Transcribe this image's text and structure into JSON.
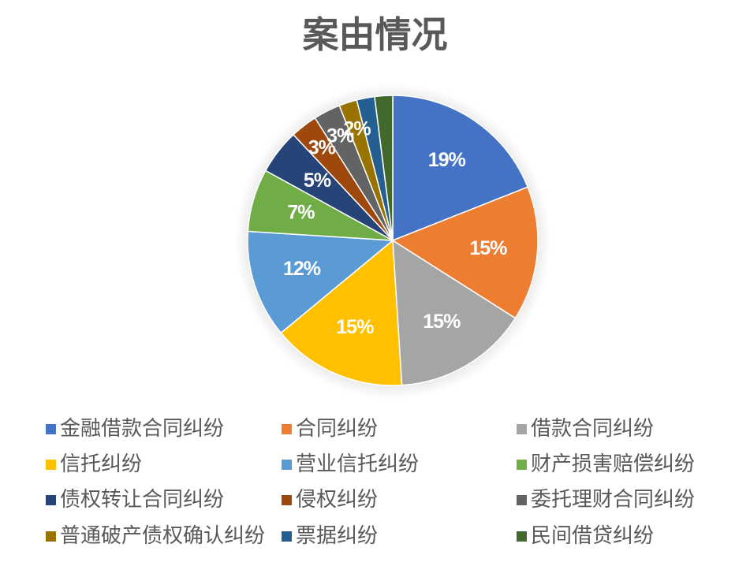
{
  "chart_data": {
    "type": "pie",
    "title": "案由情况",
    "categories": [
      "金融借款合同纠纷",
      "合同纠纷",
      "借款合同纠纷",
      "信托纠纷",
      "营业信托纠纷",
      "财产损害赔偿纠纷",
      "债权转让合同纠纷",
      "侵权纠纷",
      "委托理财合同纠纷",
      "普通破产债权确认纠纷",
      "票据纠纷",
      "民间借贷纠纷"
    ],
    "values": [
      19,
      15,
      15,
      15,
      12,
      7,
      5,
      3,
      3,
      2,
      2,
      2
    ],
    "labels": [
      "19%",
      "15%",
      "15%",
      "15%",
      "12%",
      "7%",
      "5%",
      "3%",
      "3%",
      "2%",
      "",
      ""
    ],
    "colors": [
      "#4472C4",
      "#ED7D31",
      "#A5A5A5",
      "#FFC000",
      "#5B9BD5",
      "#70AD47",
      "#264478",
      "#9E480E",
      "#636363",
      "#997300",
      "#255E91",
      "#43682B"
    ],
    "legend_position": "bottom"
  }
}
